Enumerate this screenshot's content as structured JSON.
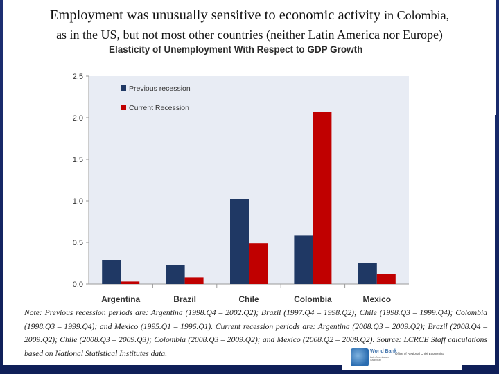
{
  "slide": {
    "headline_part1": "Employment was unusually sensitive to economic activity ",
    "headline_part2": "in Colombia,",
    "headline_line2": "as in the US, but not most other countries (neither Latin America nor Europe)"
  },
  "chart_data": {
    "type": "bar",
    "title": "Elasticity of Unemployment With Respect to GDP Growth",
    "categories": [
      "Argentina",
      "Brazil",
      "Chile",
      "Colombia",
      "Mexico"
    ],
    "series": [
      {
        "name": "Previous recession",
        "color": "#1f3864",
        "values": [
          0.29,
          0.23,
          1.02,
          0.58,
          0.25
        ]
      },
      {
        "name": "Current Recession",
        "color": "#c00000",
        "values": [
          0.03,
          0.08,
          0.49,
          2.07,
          0.12
        ]
      }
    ],
    "ylim": [
      0,
      2.5
    ],
    "yticks": [
      "0.0",
      "0.5",
      "1.0",
      "1.5",
      "2.0",
      "2.5"
    ],
    "grid": false,
    "legend": "top-left"
  },
  "note": "Note: Previous recession periods are: Argentina (1998.Q4 – 2002.Q2); Brazil (1997.Q4 – 1998.Q2); Chile (1998.Q3 – 1999.Q4); Colombia (1998.Q3 – 1999.Q4); and Mexico (1995.Q1 – 1996.Q1). Current recession periods are: Argentina (2008.Q3 – 2009.Q2); Brazil (2008.Q4 – 2009.Q2); Chile (2008.Q3 – 2009.Q3); Colombia (2008.Q3 – 2009.Q2); and Mexico (2008.Q2 – 2009.Q2). Source: LCRCE Staff calculations based on National Statistical Institutes data.",
  "logo": {
    "wordmark": "World Bank",
    "subtitle": "Latin America and Caribbean",
    "office": "Office of Regional Chief Economist"
  }
}
